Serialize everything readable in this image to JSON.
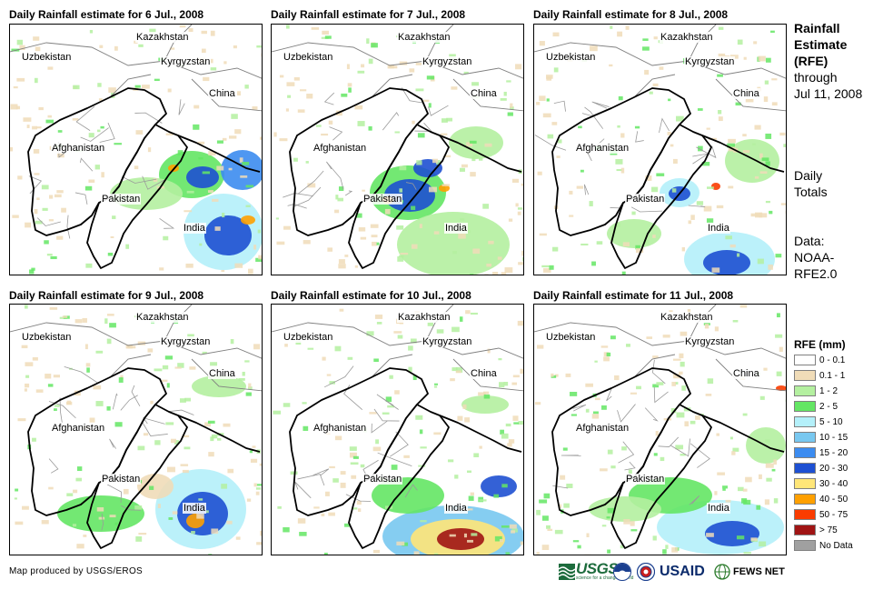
{
  "panels": [
    {
      "title": "Daily Rainfall estimate for 6 Jul., 2008",
      "rain": [
        {
          "cx": 200,
          "cy": 165,
          "rx": 36,
          "ry": 26,
          "level": 3
        },
        {
          "cx": 212,
          "cy": 168,
          "rx": 18,
          "ry": 12,
          "level": 7
        },
        {
          "cx": 235,
          "cy": 228,
          "rx": 44,
          "ry": 42,
          "level": 4
        },
        {
          "cx": 240,
          "cy": 232,
          "rx": 26,
          "ry": 22,
          "level": 7
        },
        {
          "cx": 256,
          "cy": 160,
          "rx": 24,
          "ry": 22,
          "level": 6
        },
        {
          "cx": 150,
          "cy": 186,
          "rx": 40,
          "ry": 18,
          "level": 2
        },
        {
          "cx": 180,
          "cy": 158,
          "rx": 6,
          "ry": 4,
          "level": 9
        },
        {
          "cx": 262,
          "cy": 215,
          "rx": 8,
          "ry": 5,
          "level": 9
        }
      ]
    },
    {
      "title": "Daily Rainfall estimate for 7 Jul., 2008",
      "rain": [
        {
          "cx": 150,
          "cy": 185,
          "rx": 42,
          "ry": 30,
          "level": 3
        },
        {
          "cx": 152,
          "cy": 188,
          "rx": 28,
          "ry": 18,
          "level": 7
        },
        {
          "cx": 172,
          "cy": 158,
          "rx": 16,
          "ry": 10,
          "level": 7
        },
        {
          "cx": 200,
          "cy": 242,
          "rx": 62,
          "ry": 36,
          "level": 2
        },
        {
          "cx": 225,
          "cy": 130,
          "rx": 30,
          "ry": 18,
          "level": 2
        },
        {
          "cx": 128,
          "cy": 193,
          "rx": 6,
          "ry": 4,
          "level": 9
        },
        {
          "cx": 190,
          "cy": 180,
          "rx": 6,
          "ry": 4,
          "level": 9
        }
      ]
    },
    {
      "title": "Daily Rainfall estimate for 8 Jul., 2008",
      "rain": [
        {
          "cx": 160,
          "cy": 185,
          "rx": 22,
          "ry": 16,
          "level": 4
        },
        {
          "cx": 160,
          "cy": 186,
          "rx": 12,
          "ry": 8,
          "level": 7
        },
        {
          "cx": 215,
          "cy": 258,
          "rx": 50,
          "ry": 30,
          "level": 4
        },
        {
          "cx": 212,
          "cy": 262,
          "rx": 26,
          "ry": 14,
          "level": 7
        },
        {
          "cx": 240,
          "cy": 150,
          "rx": 30,
          "ry": 24,
          "level": 2
        },
        {
          "cx": 110,
          "cy": 230,
          "rx": 30,
          "ry": 16,
          "level": 2
        },
        {
          "cx": 200,
          "cy": 178,
          "rx": 5,
          "ry": 4,
          "level": 10
        }
      ]
    },
    {
      "title": "Daily Rainfall estimate for 9 Jul., 2008",
      "rain": [
        {
          "cx": 210,
          "cy": 225,
          "rx": 50,
          "ry": 44,
          "level": 4
        },
        {
          "cx": 212,
          "cy": 230,
          "rx": 28,
          "ry": 24,
          "level": 7
        },
        {
          "cx": 204,
          "cy": 238,
          "rx": 10,
          "ry": 8,
          "level": 9
        },
        {
          "cx": 100,
          "cy": 230,
          "rx": 48,
          "ry": 20,
          "level": 3
        },
        {
          "cx": 230,
          "cy": 90,
          "rx": 30,
          "ry": 12,
          "level": 2
        },
        {
          "cx": 160,
          "cy": 200,
          "rx": 20,
          "ry": 14,
          "level": 1
        }
      ]
    },
    {
      "title": "Daily Rainfall estimate for 10 Jul., 2008",
      "rain": [
        {
          "cx": 200,
          "cy": 255,
          "rx": 78,
          "ry": 34,
          "level": 5
        },
        {
          "cx": 205,
          "cy": 258,
          "rx": 52,
          "ry": 22,
          "level": 8
        },
        {
          "cx": 208,
          "cy": 258,
          "rx": 26,
          "ry": 12,
          "level": 11
        },
        {
          "cx": 150,
          "cy": 210,
          "rx": 40,
          "ry": 20,
          "level": 3
        },
        {
          "cx": 250,
          "cy": 200,
          "rx": 20,
          "ry": 12,
          "level": 7
        },
        {
          "cx": 235,
          "cy": 110,
          "rx": 26,
          "ry": 10,
          "level": 2
        }
      ]
    },
    {
      "title": "Daily Rainfall estimate for 11 Jul., 2008",
      "rain": [
        {
          "cx": 205,
          "cy": 245,
          "rx": 70,
          "ry": 30,
          "level": 4
        },
        {
          "cx": 218,
          "cy": 252,
          "rx": 30,
          "ry": 14,
          "level": 7
        },
        {
          "cx": 150,
          "cy": 210,
          "rx": 46,
          "ry": 20,
          "level": 3
        },
        {
          "cx": 100,
          "cy": 225,
          "rx": 40,
          "ry": 14,
          "level": 2
        },
        {
          "cx": 255,
          "cy": 155,
          "rx": 22,
          "ry": 20,
          "level": 2
        },
        {
          "cx": 272,
          "cy": 92,
          "rx": 6,
          "ry": 3,
          "level": 10
        }
      ]
    }
  ],
  "country_labels": [
    {
      "name": "Kazakhstan",
      "x": 138,
      "y": 8
    },
    {
      "name": "Uzbekistan",
      "x": 12,
      "y": 30
    },
    {
      "name": "Kyrgyzstan",
      "x": 165,
      "y": 35
    },
    {
      "name": "China",
      "x": 218,
      "y": 70
    },
    {
      "name": "Afghanistan",
      "x": 45,
      "y": 130
    },
    {
      "name": "Pakistan",
      "x": 100,
      "y": 186
    },
    {
      "name": "India",
      "x": 190,
      "y": 218
    }
  ],
  "sidebar": {
    "title_bold": [
      "Rainfall",
      "Estimate",
      "(RFE)"
    ],
    "title_normal": [
      "through",
      "Jul 11, 2008"
    ],
    "daily_lines": [
      "Daily",
      "Totals"
    ],
    "data_lines": [
      "Data:",
      "NOAA-",
      "RFE2.0"
    ]
  },
  "legend": {
    "title": "RFE (mm)",
    "items": [
      {
        "label": "0 - 0.1",
        "color": "#ffffff"
      },
      {
        "label": "0.1 - 1",
        "color": "#f0dcb8"
      },
      {
        "label": "1 - 2",
        "color": "#b4f0a0"
      },
      {
        "label": "2 - 5",
        "color": "#64e664"
      },
      {
        "label": "5 - 10",
        "color": "#b4f0fa"
      },
      {
        "label": "10 - 15",
        "color": "#78c8f0"
      },
      {
        "label": "15 - 20",
        "color": "#3c8cf0"
      },
      {
        "label": "20 - 30",
        "color": "#1e50d2"
      },
      {
        "label": "30 - 40",
        "color": "#ffe678"
      },
      {
        "label": "40 - 50",
        "color": "#ffa000"
      },
      {
        "label": "50 - 75",
        "color": "#fa3c00"
      },
      {
        "label": "> 75",
        "color": "#a01414"
      },
      {
        "label": "No Data",
        "color": "#a0a0a0"
      }
    ]
  },
  "credit": "Map produced by USGS/EROS",
  "logos": {
    "usgs": "USGS",
    "usgs_tagline": "science for a changing world",
    "usaid": "USAID",
    "fews": "FEWS NET"
  }
}
